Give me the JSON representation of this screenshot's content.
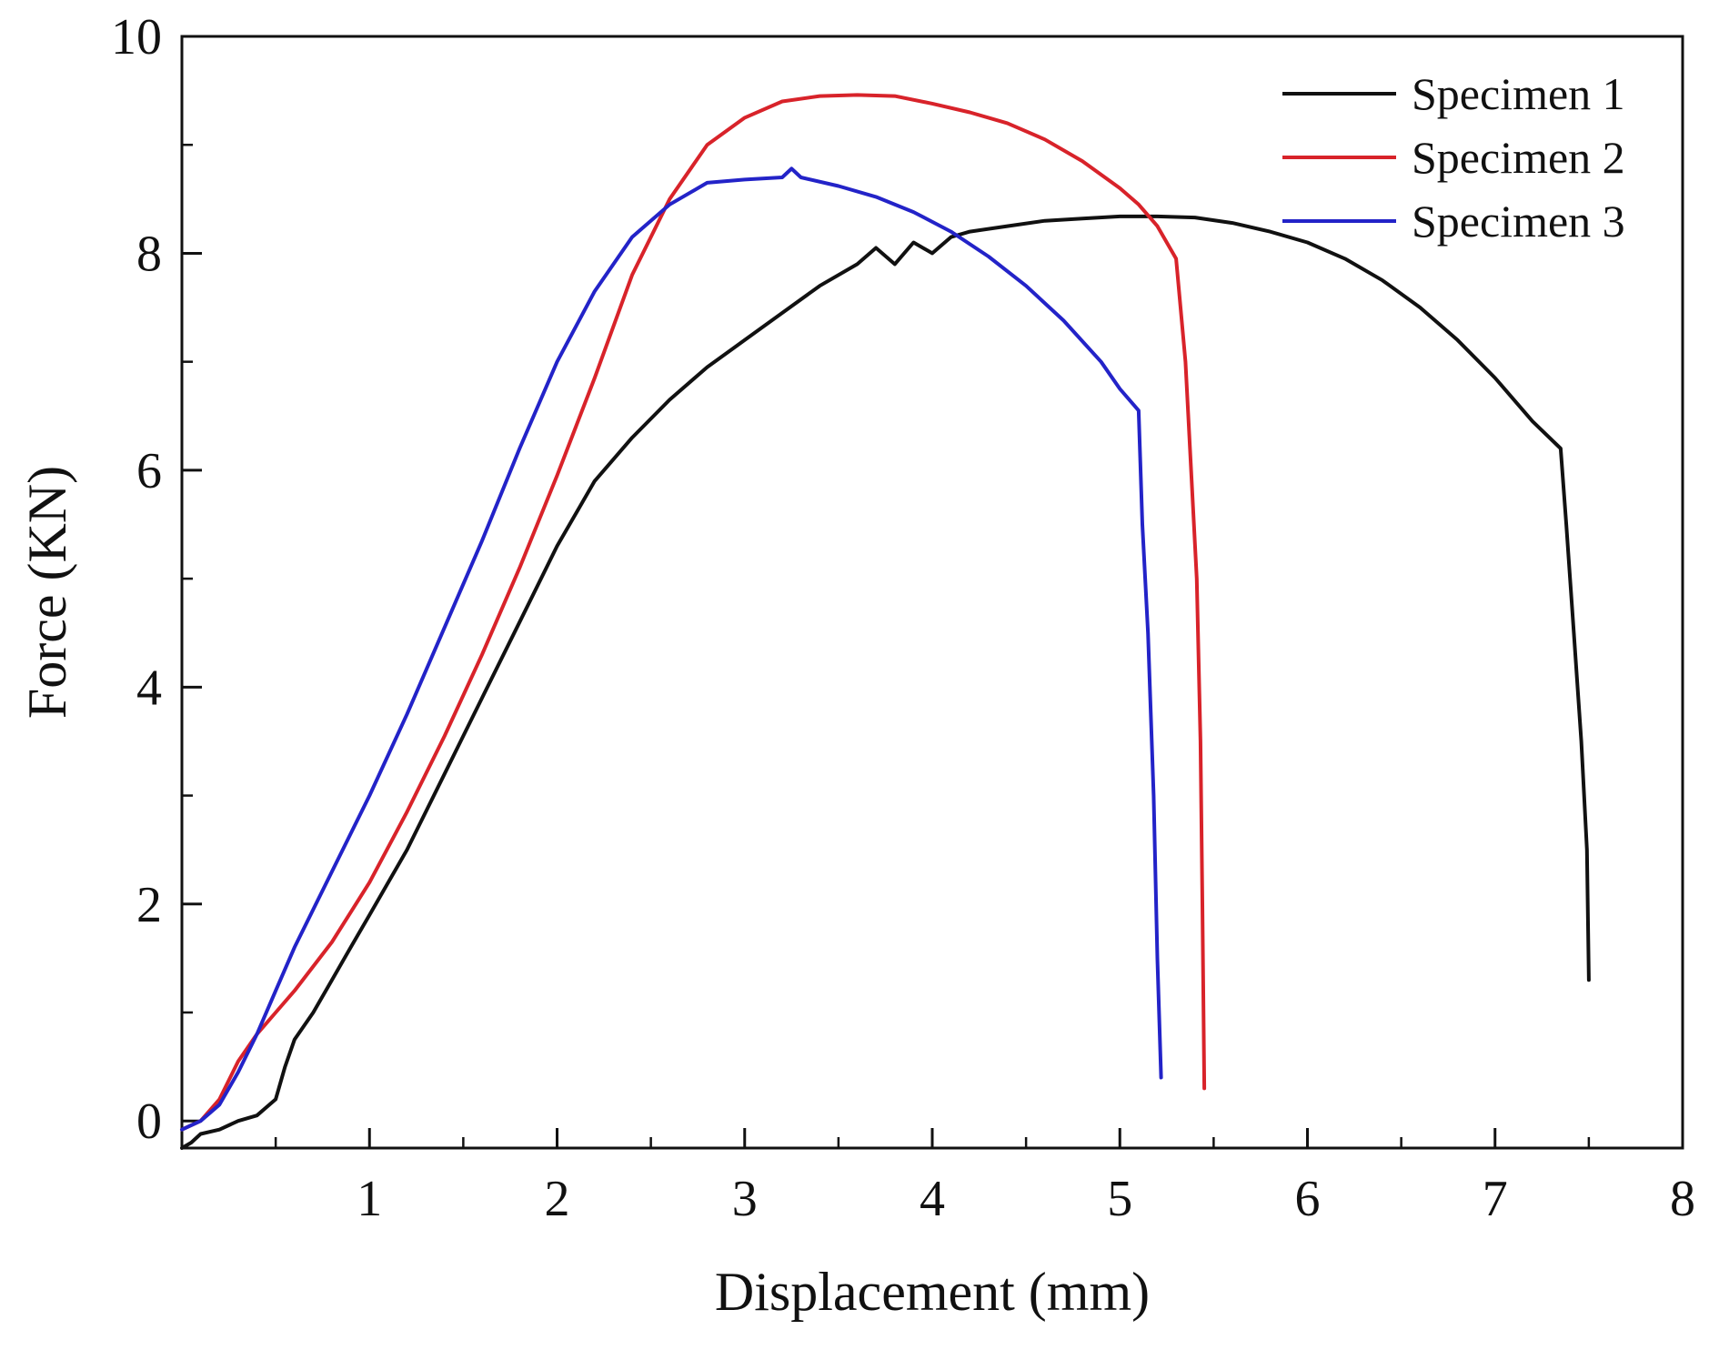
{
  "chart_data": {
    "type": "line",
    "xlabel": "Displacement (mm)",
    "ylabel": "Force (KN)",
    "xlim": [
      0,
      8
    ],
    "ylim": [
      -0.25,
      10
    ],
    "x_ticks": [
      1,
      2,
      3,
      4,
      5,
      6,
      7,
      8
    ],
    "y_ticks": [
      0,
      2,
      4,
      6,
      8,
      10
    ],
    "x_minor_step": 0.5,
    "y_minor_step": 1,
    "legend_position": "top-right",
    "series": [
      {
        "name": "Specimen 1",
        "color": "#111111",
        "points": [
          [
            0.0,
            -0.25
          ],
          [
            0.05,
            -0.2
          ],
          [
            0.1,
            -0.12
          ],
          [
            0.2,
            -0.08
          ],
          [
            0.3,
            0.0
          ],
          [
            0.4,
            0.05
          ],
          [
            0.5,
            0.2
          ],
          [
            0.55,
            0.5
          ],
          [
            0.6,
            0.75
          ],
          [
            0.7,
            1.0
          ],
          [
            0.8,
            1.3
          ],
          [
            0.9,
            1.6
          ],
          [
            1.0,
            1.9
          ],
          [
            1.2,
            2.5
          ],
          [
            1.4,
            3.2
          ],
          [
            1.6,
            3.9
          ],
          [
            1.8,
            4.6
          ],
          [
            2.0,
            5.3
          ],
          [
            2.2,
            5.9
          ],
          [
            2.4,
            6.3
          ],
          [
            2.6,
            6.65
          ],
          [
            2.8,
            6.95
          ],
          [
            3.0,
            7.2
          ],
          [
            3.2,
            7.45
          ],
          [
            3.4,
            7.7
          ],
          [
            3.6,
            7.9
          ],
          [
            3.7,
            8.05
          ],
          [
            3.8,
            7.9
          ],
          [
            3.9,
            8.1
          ],
          [
            4.0,
            8.0
          ],
          [
            4.1,
            8.15
          ],
          [
            4.2,
            8.2
          ],
          [
            4.4,
            8.25
          ],
          [
            4.6,
            8.3
          ],
          [
            4.8,
            8.32
          ],
          [
            5.0,
            8.34
          ],
          [
            5.2,
            8.34
          ],
          [
            5.4,
            8.33
          ],
          [
            5.6,
            8.28
          ],
          [
            5.8,
            8.2
          ],
          [
            6.0,
            8.1
          ],
          [
            6.2,
            7.95
          ],
          [
            6.4,
            7.75
          ],
          [
            6.6,
            7.5
          ],
          [
            6.8,
            7.2
          ],
          [
            7.0,
            6.85
          ],
          [
            7.2,
            6.45
          ],
          [
            7.35,
            6.2
          ],
          [
            7.38,
            5.5
          ],
          [
            7.42,
            4.5
          ],
          [
            7.46,
            3.5
          ],
          [
            7.49,
            2.5
          ],
          [
            7.5,
            1.3
          ]
        ]
      },
      {
        "name": "Specimen 2",
        "color": "#d8232a",
        "points": [
          [
            0.0,
            -0.08
          ],
          [
            0.1,
            0.0
          ],
          [
            0.2,
            0.2
          ],
          [
            0.3,
            0.55
          ],
          [
            0.4,
            0.8
          ],
          [
            0.5,
            1.0
          ],
          [
            0.6,
            1.2
          ],
          [
            0.8,
            1.65
          ],
          [
            1.0,
            2.2
          ],
          [
            1.2,
            2.85
          ],
          [
            1.4,
            3.55
          ],
          [
            1.6,
            4.3
          ],
          [
            1.8,
            5.1
          ],
          [
            2.0,
            5.95
          ],
          [
            2.2,
            6.85
          ],
          [
            2.4,
            7.8
          ],
          [
            2.6,
            8.5
          ],
          [
            2.8,
            9.0
          ],
          [
            3.0,
            9.25
          ],
          [
            3.2,
            9.4
          ],
          [
            3.4,
            9.45
          ],
          [
            3.6,
            9.46
          ],
          [
            3.8,
            9.45
          ],
          [
            4.0,
            9.38
          ],
          [
            4.2,
            9.3
          ],
          [
            4.4,
            9.2
          ],
          [
            4.6,
            9.05
          ],
          [
            4.8,
            8.85
          ],
          [
            5.0,
            8.6
          ],
          [
            5.1,
            8.45
          ],
          [
            5.2,
            8.25
          ],
          [
            5.3,
            7.95
          ],
          [
            5.35,
            7.0
          ],
          [
            5.38,
            6.0
          ],
          [
            5.41,
            5.0
          ],
          [
            5.43,
            3.5
          ],
          [
            5.44,
            2.0
          ],
          [
            5.45,
            0.3
          ]
        ]
      },
      {
        "name": "Specimen 3",
        "color": "#2323c8",
        "points": [
          [
            0.0,
            -0.08
          ],
          [
            0.1,
            0.0
          ],
          [
            0.2,
            0.15
          ],
          [
            0.3,
            0.45
          ],
          [
            0.4,
            0.8
          ],
          [
            0.5,
            1.2
          ],
          [
            0.6,
            1.6
          ],
          [
            0.8,
            2.3
          ],
          [
            1.0,
            3.0
          ],
          [
            1.2,
            3.75
          ],
          [
            1.4,
            4.55
          ],
          [
            1.6,
            5.35
          ],
          [
            1.8,
            6.2
          ],
          [
            2.0,
            7.0
          ],
          [
            2.2,
            7.65
          ],
          [
            2.4,
            8.15
          ],
          [
            2.6,
            8.45
          ],
          [
            2.8,
            8.65
          ],
          [
            3.0,
            8.68
          ],
          [
            3.2,
            8.7
          ],
          [
            3.25,
            8.78
          ],
          [
            3.3,
            8.7
          ],
          [
            3.5,
            8.62
          ],
          [
            3.7,
            8.52
          ],
          [
            3.9,
            8.38
          ],
          [
            4.1,
            8.2
          ],
          [
            4.3,
            7.97
          ],
          [
            4.5,
            7.7
          ],
          [
            4.7,
            7.38
          ],
          [
            4.9,
            7.0
          ],
          [
            5.0,
            6.75
          ],
          [
            5.1,
            6.55
          ],
          [
            5.12,
            5.5
          ],
          [
            5.15,
            4.5
          ],
          [
            5.18,
            3.0
          ],
          [
            5.2,
            1.5
          ],
          [
            5.22,
            0.4
          ]
        ]
      }
    ]
  }
}
